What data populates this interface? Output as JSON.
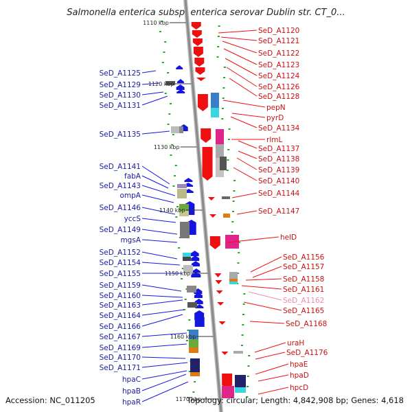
{
  "title": "Salmonella enterica subsp. enterica serovar Dublin str. CT_0...",
  "footer": {
    "accession": "Accession: NC_011205",
    "topology": "Topology: circular; Length: 4,842,908 bp; Genes: 4,618"
  },
  "ticks": [
    "1110 kbp",
    "1120 kbp",
    "1130 kbp",
    "1140 kbp",
    "1150 kbp",
    "1160 kbp",
    "1170 kbp"
  ],
  "left_genes": [
    "SeD_A1125",
    "SeD_A1129",
    "SeD_A1130",
    "SeD_A1131",
    "SeD_A1135",
    "SeD_A1141",
    "fabA",
    "SeD_A1143",
    "ompA",
    "SeD_A1146",
    "yccS",
    "SeD_A1149",
    "mgsA",
    "SeD_A1152",
    "SeD_A1154",
    "SeD_A1155",
    "SeD_A1159",
    "SeD_A1160",
    "SeD_A1163",
    "SeD_A1164",
    "SeD_A1166",
    "SeD_A1167",
    "SeD_A1169",
    "SeD_A1170",
    "SeD_A1171",
    "hpaC",
    "hpaB",
    "hpaR"
  ],
  "right_genes": [
    "SeD_A1120",
    "SeD_A1121",
    "SeD_A1122",
    "SeD_A1123",
    "SeD_A1124",
    "SeD_A1126",
    "SeD_A1128",
    "pepN",
    "pyrD",
    "SeD_A1134",
    "rlmL",
    "SeD_A1137",
    "SeD_A1138",
    "SeD_A1139",
    "SeD_A1140",
    "SeD_A1144",
    "SeD_A1147",
    "helD",
    "SeD_A1156",
    "SeD_A1157",
    "SeD_A1158",
    "SeD_A1161",
    "SeD_A1162",
    "SeD_A1165",
    "SeD_A1168",
    "uraH",
    "SeD_A1176",
    "hpaE",
    "hpaD",
    "hpcD"
  ],
  "colors": {
    "forward_strand": "#ee1010",
    "reverse_strand": "#1515e0",
    "axis": "#8a8a8a",
    "faded_label": "#f08ab0",
    "left_label": "#1a1aa0",
    "right_label": "#cc1010",
    "gc_marker": "#22aa22"
  }
}
